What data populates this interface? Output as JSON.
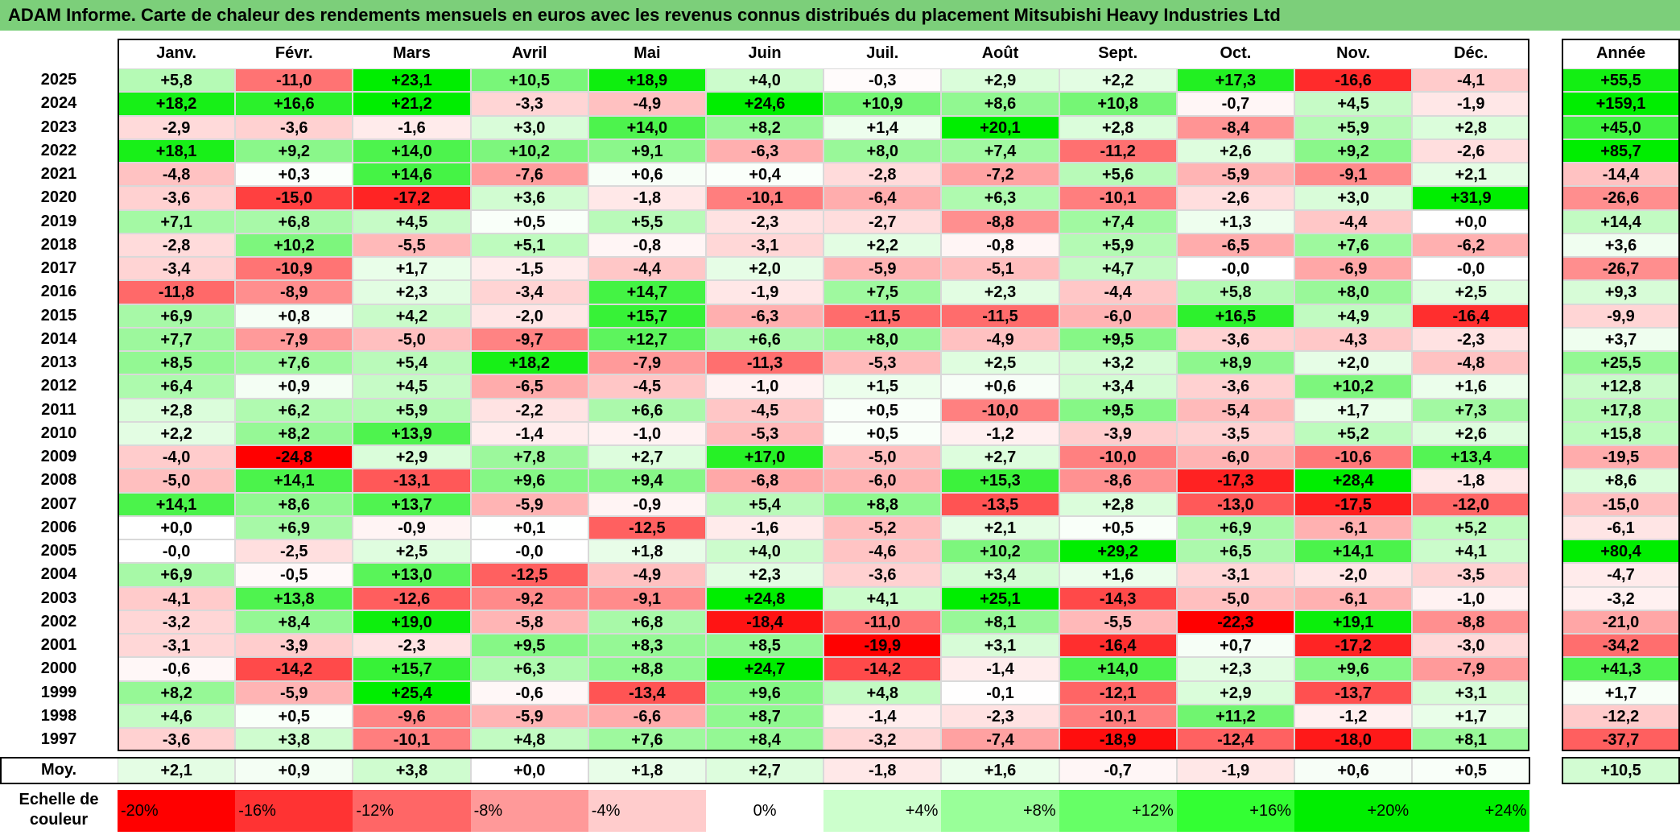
{
  "title": "ADAM Informe. Carte de chaleur des rendements mensuels en euros avec les revenus connus distribués du placement Mitsubishi Heavy Industries Ltd",
  "columns": [
    "Janv.",
    "Févr.",
    "Mars",
    "Avril",
    "Mai",
    "Juin",
    "Juil.",
    "Août",
    "Sept.",
    "Oct.",
    "Nov.",
    "Déc."
  ],
  "year_header": "Année",
  "average_label": "Moy.",
  "scale_label": "Echelle de couleur",
  "colors": {
    "negative": "#ff0000",
    "neutral": "#ffffff",
    "positive": "#00ee00",
    "header_bg": "#7ccf7a"
  },
  "chart_data": {
    "type": "heatmap",
    "title": "ADAM Informe. Carte de chaleur des rendements mensuels en euros avec les revenus connus distribués du placement Mitsubishi Heavy Industries Ltd",
    "unit": "%",
    "rows": [
      {
        "year": "2025",
        "values": [
          "+5,8",
          "-11,0",
          "+23,1",
          "+10,5",
          "+18,9",
          "+4,0",
          "-0,3",
          "+2,9",
          "+2,2",
          "+17,3",
          "-16,6",
          "-4,1"
        ],
        "annual": "+55,5"
      },
      {
        "year": "2024",
        "values": [
          "+18,2",
          "+16,6",
          "+21,2",
          "-3,3",
          "-4,9",
          "+24,6",
          "+10,9",
          "+8,6",
          "+10,8",
          "-0,7",
          "+4,5",
          "-1,9"
        ],
        "annual": "+159,1"
      },
      {
        "year": "2023",
        "values": [
          "-2,9",
          "-3,6",
          "-1,6",
          "+3,0",
          "+14,0",
          "+8,2",
          "+1,4",
          "+20,1",
          "+2,8",
          "-8,4",
          "+5,9",
          "+2,8"
        ],
        "annual": "+45,0"
      },
      {
        "year": "2022",
        "values": [
          "+18,1",
          "+9,2",
          "+14,0",
          "+10,2",
          "+9,1",
          "-6,3",
          "+8,0",
          "+7,4",
          "-11,2",
          "+2,6",
          "+9,2",
          "-2,6"
        ],
        "annual": "+85,7"
      },
      {
        "year": "2021",
        "values": [
          "-4,8",
          "+0,3",
          "+14,6",
          "-7,6",
          "+0,6",
          "+0,4",
          "-2,8",
          "-7,2",
          "+5,6",
          "-5,9",
          "-9,1",
          "+2,1"
        ],
        "annual": "-14,4"
      },
      {
        "year": "2020",
        "values": [
          "-3,6",
          "-15,0",
          "-17,2",
          "+3,6",
          "-1,8",
          "-10,1",
          "-6,4",
          "+6,3",
          "-10,1",
          "-2,6",
          "+3,0",
          "+31,9"
        ],
        "annual": "-26,6"
      },
      {
        "year": "2019",
        "values": [
          "+7,1",
          "+6,8",
          "+4,5",
          "+0,5",
          "+5,5",
          "-2,3",
          "-2,7",
          "-8,8",
          "+7,4",
          "+1,3",
          "-4,4",
          "+0,0"
        ],
        "annual": "+14,4"
      },
      {
        "year": "2018",
        "values": [
          "-2,8",
          "+10,2",
          "-5,5",
          "+5,1",
          "-0,8",
          "-3,1",
          "+2,2",
          "-0,8",
          "+5,9",
          "-6,5",
          "+7,6",
          "-6,2"
        ],
        "annual": "+3,6"
      },
      {
        "year": "2017",
        "values": [
          "-3,4",
          "-10,9",
          "+1,7",
          "-1,5",
          "-4,4",
          "+2,0",
          "-5,9",
          "-5,1",
          "+4,7",
          "-0,0",
          "-6,9",
          "-0,0"
        ],
        "annual": "-26,7"
      },
      {
        "year": "2016",
        "values": [
          "-11,8",
          "-8,9",
          "+2,3",
          "-3,4",
          "+14,7",
          "-1,9",
          "+7,5",
          "+2,3",
          "-4,4",
          "+5,8",
          "+8,0",
          "+2,5"
        ],
        "annual": "+9,3"
      },
      {
        "year": "2015",
        "values": [
          "+6,9",
          "+0,8",
          "+4,2",
          "-2,0",
          "+15,7",
          "-6,3",
          "-11,5",
          "-11,5",
          "-6,0",
          "+16,5",
          "+4,9",
          "-16,4"
        ],
        "annual": "-9,9"
      },
      {
        "year": "2014",
        "values": [
          "+7,7",
          "-7,9",
          "-5,0",
          "-9,7",
          "+12,7",
          "+6,6",
          "+8,0",
          "-4,9",
          "+9,5",
          "-3,6",
          "-4,3",
          "-2,3"
        ],
        "annual": "+3,7"
      },
      {
        "year": "2013",
        "values": [
          "+8,5",
          "+7,6",
          "+5,4",
          "+18,2",
          "-7,9",
          "-11,3",
          "-5,3",
          "+2,5",
          "+3,2",
          "+8,9",
          "+2,0",
          "-4,8"
        ],
        "annual": "+25,5"
      },
      {
        "year": "2012",
        "values": [
          "+6,4",
          "+0,9",
          "+4,5",
          "-6,5",
          "-4,5",
          "-1,0",
          "+1,5",
          "+0,6",
          "+3,4",
          "-3,6",
          "+10,2",
          "+1,6"
        ],
        "annual": "+12,8"
      },
      {
        "year": "2011",
        "values": [
          "+2,8",
          "+6,2",
          "+5,9",
          "-2,2",
          "+6,6",
          "-4,5",
          "+0,5",
          "-10,0",
          "+9,5",
          "-5,4",
          "+1,7",
          "+7,3"
        ],
        "annual": "+17,8"
      },
      {
        "year": "2010",
        "values": [
          "+2,2",
          "+8,2",
          "+13,9",
          "-1,4",
          "-1,0",
          "-5,3",
          "+0,5",
          "-1,2",
          "-3,9",
          "-3,5",
          "+5,2",
          "+2,6"
        ],
        "annual": "+15,8"
      },
      {
        "year": "2009",
        "values": [
          "-4,0",
          "-24,8",
          "+2,9",
          "+7,8",
          "+2,7",
          "+17,0",
          "-5,0",
          "+2,7",
          "-10,0",
          "-6,0",
          "-10,6",
          "+13,4"
        ],
        "annual": "-19,5"
      },
      {
        "year": "2008",
        "values": [
          "-5,0",
          "+14,1",
          "-13,1",
          "+9,6",
          "+9,4",
          "-6,8",
          "-6,0",
          "+15,3",
          "-8,6",
          "-17,3",
          "+28,4",
          "-1,8"
        ],
        "annual": "+8,6"
      },
      {
        "year": "2007",
        "values": [
          "+14,1",
          "+8,6",
          "+13,7",
          "-5,9",
          "-0,9",
          "+5,4",
          "+8,8",
          "-13,5",
          "+2,8",
          "-13,0",
          "-17,5",
          "-12,0"
        ],
        "annual": "-15,0"
      },
      {
        "year": "2006",
        "values": [
          "+0,0",
          "+6,9",
          "-0,9",
          "+0,1",
          "-12,5",
          "-1,6",
          "-5,2",
          "+2,1",
          "+0,5",
          "+6,9",
          "-6,1",
          "+5,2"
        ],
        "annual": "-6,1"
      },
      {
        "year": "2005",
        "values": [
          "-0,0",
          "-2,5",
          "+2,5",
          "-0,0",
          "+1,8",
          "+4,0",
          "-4,6",
          "+10,2",
          "+29,2",
          "+6,5",
          "+14,1",
          "+4,1"
        ],
        "annual": "+80,4"
      },
      {
        "year": "2004",
        "values": [
          "+6,9",
          "-0,5",
          "+13,0",
          "-12,5",
          "-4,9",
          "+2,3",
          "-3,6",
          "+3,4",
          "+1,6",
          "-3,1",
          "-2,0",
          "-3,5"
        ],
        "annual": "-4,7"
      },
      {
        "year": "2003",
        "values": [
          "-4,1",
          "+13,8",
          "-12,6",
          "-9,2",
          "-9,1",
          "+24,8",
          "+4,1",
          "+25,1",
          "-14,3",
          "-5,0",
          "-6,1",
          "-1,0"
        ],
        "annual": "-3,2"
      },
      {
        "year": "2002",
        "values": [
          "-3,2",
          "+8,4",
          "+19,0",
          "-5,8",
          "+6,8",
          "-18,4",
          "-11,0",
          "+8,1",
          "-5,5",
          "-22,3",
          "+19,1",
          "-8,8"
        ],
        "annual": "-21,0"
      },
      {
        "year": "2001",
        "values": [
          "-3,1",
          "-3,9",
          "-2,3",
          "+9,5",
          "+8,3",
          "+8,5",
          "-19,9",
          "+3,1",
          "-16,4",
          "+0,7",
          "-17,2",
          "-3,0"
        ],
        "annual": "-34,2"
      },
      {
        "year": "2000",
        "values": [
          "-0,6",
          "-14,2",
          "+15,7",
          "+6,3",
          "+8,8",
          "+24,7",
          "-14,2",
          "-1,4",
          "+14,0",
          "+2,3",
          "+9,6",
          "-7,9"
        ],
        "annual": "+41,3"
      },
      {
        "year": "1999",
        "values": [
          "+8,2",
          "-5,9",
          "+25,4",
          "-0,6",
          "-13,4",
          "+9,6",
          "+4,8",
          "-0,1",
          "-12,1",
          "+2,9",
          "-13,7",
          "+3,1"
        ],
        "annual": "+1,7"
      },
      {
        "year": "1998",
        "values": [
          "+4,6",
          "+0,5",
          "-9,6",
          "-5,9",
          "-6,6",
          "+8,7",
          "-1,4",
          "-2,3",
          "-10,1",
          "+11,2",
          "-1,2",
          "+1,7"
        ],
        "annual": "-12,2"
      },
      {
        "year": "1997",
        "values": [
          "-3,6",
          "+3,8",
          "-10,1",
          "+4,8",
          "+7,6",
          "+8,4",
          "-3,2",
          "-7,4",
          "-18,9",
          "-12,4",
          "-18,0",
          "+8,1"
        ],
        "annual": "-37,7"
      }
    ],
    "average": {
      "values": [
        "+2,1",
        "+0,9",
        "+3,8",
        "+0,0",
        "+1,8",
        "+2,7",
        "-1,8",
        "+1,6",
        "-0,7",
        "-1,9",
        "+0,6",
        "+0,5"
      ],
      "annual": "+10,5"
    },
    "scale": [
      "-20%",
      "-16%",
      "-12%",
      "-8%",
      "-4%",
      "0%",
      "+4%",
      "+8%",
      "+12%",
      "+16%",
      "+20%",
      "+24%"
    ],
    "scale_colors": [
      "#ff0000",
      "#ff3333",
      "#ff6666",
      "#ff9999",
      "#ffcccc",
      "#ffffff",
      "#ccffcc",
      "#99ff99",
      "#66ff66",
      "#33ff33",
      "#00ee00",
      "#00ee00"
    ]
  }
}
